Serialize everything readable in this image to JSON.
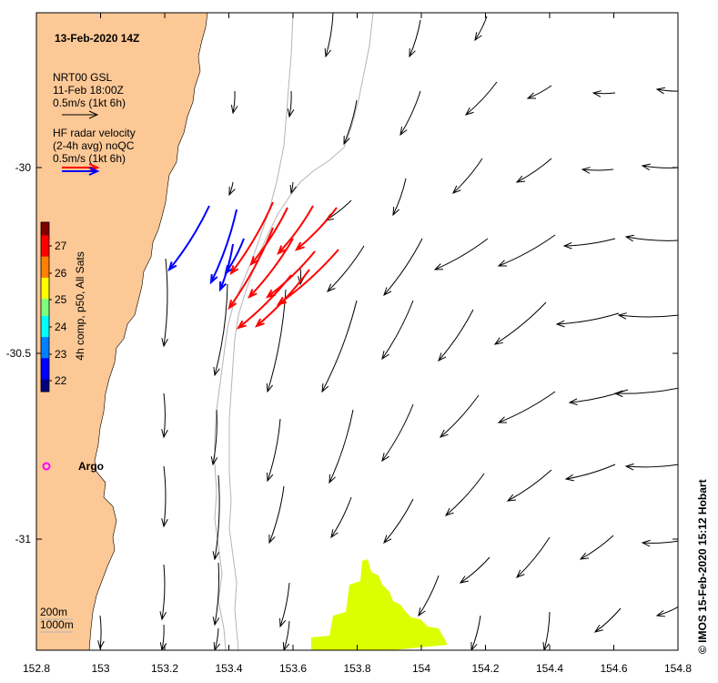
{
  "title": "13-Feb-2020 14Z",
  "legend": {
    "model_name": "NRT00 GSL",
    "model_time": "11-Feb 18:00Z",
    "model_scale": "0.5m/s (1kt 6h)",
    "radar_l1": "HF radar velocity",
    "radar_l2": "(2-4h avg) noQC",
    "radar_scale": "0.5m/s (1kt 6h)"
  },
  "colorbar": {
    "label": "4h comp, p50, All Sats",
    "ticks": [
      "22",
      "23",
      "24",
      "25",
      "26",
      "27"
    ]
  },
  "argo_label": "Argo",
  "contour_labels": {
    "c200": "200m",
    "c1000": "1000m"
  },
  "x_ticks": [
    "152.8",
    "153",
    "153.2",
    "153.4",
    "153.6",
    "153.8",
    "154",
    "154.2",
    "154.4",
    "154.6",
    "154.8"
  ],
  "y_ticks": [
    "-30",
    "-30.5",
    "-31"
  ],
  "credit": "© IMOS 15-Feb-2020 15:12 Hobart",
  "colors": {
    "land": "#fbc896",
    "model_arrow": "#000000",
    "radar_blue": "#0000ff",
    "radar_red": "#ff0000",
    "sst_patch": "#dcff00",
    "argo": "#ff00ff",
    "contour": "#b4b4b4"
  }
}
